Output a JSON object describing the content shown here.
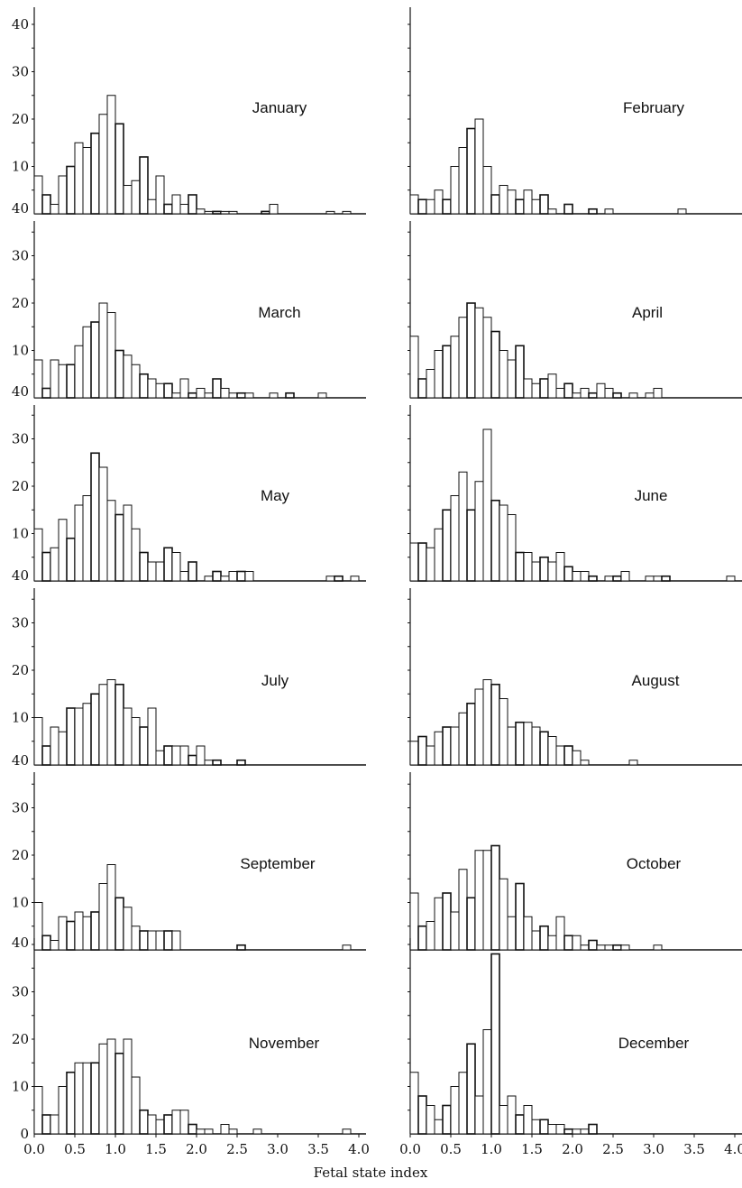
{
  "figure": {
    "x_axis_title": "Fetal state index"
  },
  "chart_data": {
    "type": "bar",
    "x_axis_title": "Fetal state index",
    "bin_width": 0.1,
    "bin_starts": [
      0.0,
      0.1,
      0.2,
      0.3,
      0.4,
      0.5,
      0.6,
      0.7,
      0.8,
      0.9,
      1.0,
      1.1,
      1.2,
      1.3,
      1.4,
      1.5,
      1.6,
      1.7,
      1.8,
      1.9,
      2.0,
      2.1,
      2.2,
      2.3,
      2.4,
      2.5,
      2.6,
      2.7,
      2.8,
      2.9,
      3.0,
      3.1,
      3.2,
      3.3,
      3.4,
      3.5,
      3.6,
      3.7,
      3.8,
      3.9
    ],
    "x_range": [
      0,
      4.1
    ],
    "x_ticks": [
      "0.0",
      "0.5",
      "1.0",
      "1.5",
      "2.0",
      "2.5",
      "3.0",
      "3.5",
      "4.0"
    ],
    "x_tick_values": [
      0.0,
      0.5,
      1.0,
      1.5,
      2.0,
      2.5,
      3.0,
      3.5,
      4.0
    ],
    "y_range": [
      0,
      40
    ],
    "y_ticks": [
      "10",
      "20",
      "30",
      "40"
    ],
    "y_tick_values": [
      10,
      20,
      30,
      40
    ],
    "bottom_y_ticks": [
      "0",
      "10",
      "20",
      "30"
    ],
    "bottom_y_tick_values": [
      0,
      10,
      20,
      30
    ],
    "panels": [
      {
        "label": "January",
        "values": [
          8,
          4,
          2,
          8,
          10,
          15,
          14,
          17,
          21,
          25,
          19,
          6,
          7,
          12,
          3,
          8,
          2,
          4,
          2,
          4,
          1,
          0.5,
          0.5,
          0.5,
          0.5,
          0,
          0,
          0,
          0.5,
          2,
          0,
          0,
          0,
          0,
          0,
          0,
          0.5,
          0,
          0.5,
          0
        ]
      },
      {
        "label": "February",
        "values": [
          4,
          3,
          3,
          5,
          3,
          10,
          14,
          18,
          20,
          10,
          4,
          6,
          5,
          3,
          5,
          3,
          4,
          1,
          0,
          2,
          0,
          0,
          1,
          0,
          1,
          0,
          0,
          0,
          0,
          0,
          0,
          0,
          0,
          1,
          0,
          0,
          0,
          0,
          0,
          0
        ]
      },
      {
        "label": "March",
        "values": [
          8,
          2,
          8,
          7,
          7,
          11,
          15,
          16,
          20,
          18,
          10,
          9,
          7,
          5,
          4,
          3,
          3,
          1,
          4,
          1,
          2,
          1,
          4,
          2,
          1,
          1,
          1,
          0,
          0,
          1,
          0,
          1,
          0,
          0,
          0,
          1,
          0,
          0,
          0,
          0
        ]
      },
      {
        "label": "April",
        "values": [
          13,
          4,
          6,
          10,
          11,
          13,
          17,
          20,
          19,
          17,
          14,
          10,
          8,
          11,
          4,
          3,
          4,
          5,
          2,
          3,
          1,
          2,
          1,
          3,
          2,
          1,
          0,
          1,
          0,
          1,
          2,
          0,
          0,
          0,
          0,
          0,
          0,
          0,
          0,
          0
        ]
      },
      {
        "label": "May",
        "values": [
          11,
          6,
          7,
          13,
          9,
          16,
          18,
          27,
          24,
          17,
          14,
          16,
          11,
          6,
          4,
          4,
          7,
          6,
          2,
          4,
          0,
          1,
          2,
          1,
          2,
          2,
          2,
          0,
          0,
          0,
          0,
          0,
          0,
          0,
          0,
          0,
          1,
          1,
          0,
          1
        ]
      },
      {
        "label": "June",
        "values": [
          8,
          8,
          7,
          11,
          15,
          18,
          23,
          15,
          21,
          32,
          17,
          16,
          14,
          6,
          6,
          4,
          5,
          4,
          6,
          3,
          2,
          2,
          1,
          0,
          1,
          1,
          2,
          0,
          0,
          1,
          1,
          1,
          0,
          0,
          0,
          0,
          0,
          0,
          0,
          1
        ]
      },
      {
        "label": "July",
        "values": [
          10,
          4,
          8,
          7,
          12,
          12,
          13,
          15,
          17,
          18,
          17,
          12,
          10,
          8,
          12,
          3,
          4,
          4,
          4,
          2,
          4,
          1,
          1,
          0,
          0,
          1,
          0,
          0,
          0,
          0,
          0,
          0,
          0,
          0,
          0,
          0,
          0,
          0,
          0,
          0
        ]
      },
      {
        "label": "August",
        "values": [
          5,
          6,
          4,
          7,
          8,
          8,
          11,
          13,
          16,
          18,
          17,
          14,
          8,
          9,
          9,
          8,
          7,
          6,
          4,
          4,
          3,
          1,
          0,
          0,
          0,
          0,
          0,
          1,
          0,
          0,
          0,
          0,
          0,
          0,
          0,
          0,
          0,
          0,
          0,
          0
        ]
      },
      {
        "label": "September",
        "values": [
          10,
          3,
          2,
          7,
          6,
          8,
          7,
          8,
          14,
          18,
          11,
          9,
          5,
          4,
          4,
          4,
          4,
          4,
          0,
          0,
          0,
          0,
          0,
          0,
          0,
          1,
          0,
          0,
          0,
          0,
          0,
          0,
          0,
          0,
          0,
          0,
          0,
          0,
          1,
          0
        ]
      },
      {
        "label": "October",
        "values": [
          12,
          5,
          6,
          11,
          12,
          8,
          17,
          11,
          21,
          21,
          22,
          15,
          7,
          14,
          7,
          4,
          5,
          3,
          7,
          3,
          3,
          1,
          2,
          1,
          1,
          1,
          1,
          0,
          0,
          0,
          1,
          0,
          0,
          0,
          0,
          0,
          0,
          0,
          0,
          0
        ]
      },
      {
        "label": "November",
        "values": [
          10,
          4,
          4,
          10,
          13,
          15,
          15,
          15,
          19,
          20,
          17,
          20,
          12,
          5,
          4,
          3,
          4,
          5,
          5,
          2,
          1,
          1,
          0,
          2,
          1,
          0,
          0,
          1,
          0,
          0,
          0,
          0,
          0,
          0,
          0,
          0,
          0,
          0,
          1,
          0
        ]
      },
      {
        "label": "December",
        "values": [
          13,
          8,
          6,
          3,
          6,
          10,
          13,
          19,
          8,
          22,
          38,
          6,
          8,
          4,
          6,
          3,
          3,
          2,
          2,
          1,
          1,
          1,
          2,
          0,
          0,
          0,
          0,
          0,
          0,
          0,
          0,
          0,
          0,
          0,
          0,
          0,
          0,
          0,
          0,
          0
        ]
      }
    ]
  }
}
